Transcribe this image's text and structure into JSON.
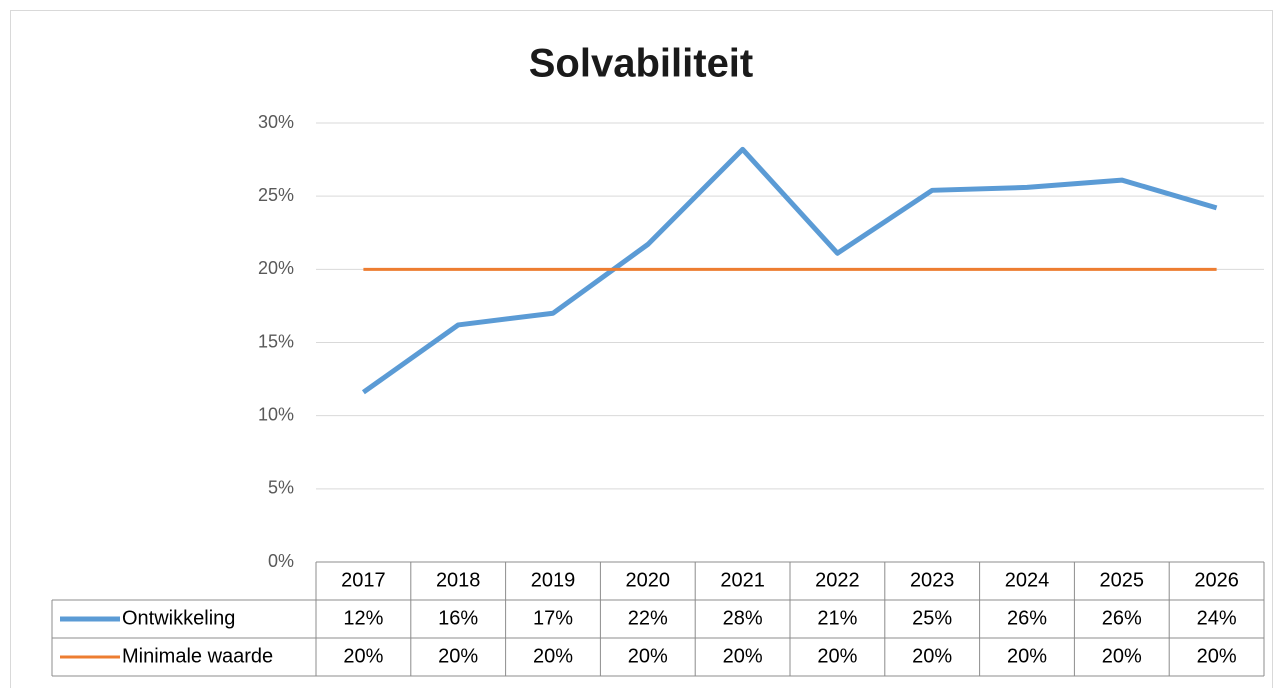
{
  "chart_data": {
    "type": "line",
    "title": "Solvabiliteit",
    "categories": [
      "2017",
      "2018",
      "2019",
      "2020",
      "2021",
      "2022",
      "2023",
      "2024",
      "2025",
      "2026"
    ],
    "series": [
      {
        "name": "Ontwikkeling",
        "color": "#5b9bd5",
        "values": [
          11.6,
          16.2,
          17.0,
          21.7,
          28.2,
          21.1,
          25.4,
          25.6,
          26.1,
          24.2
        ],
        "value_labels": [
          "12%",
          "16%",
          "17%",
          "22%",
          "28%",
          "21%",
          "25%",
          "26%",
          "26%",
          "24%"
        ]
      },
      {
        "name": "Minimale waarde",
        "color": "#ed7d31",
        "values": [
          20,
          20,
          20,
          20,
          20,
          20,
          20,
          20,
          20,
          20
        ],
        "value_labels": [
          "20%",
          "20%",
          "20%",
          "20%",
          "20%",
          "20%",
          "20%",
          "20%",
          "20%",
          "20%"
        ]
      }
    ],
    "ylim": [
      0,
      30
    ],
    "yticks": [
      {
        "value": 0,
        "label": "0%"
      },
      {
        "value": 5,
        "label": "5%"
      },
      {
        "value": 10,
        "label": "10%"
      },
      {
        "value": 15,
        "label": "15%"
      },
      {
        "value": 20,
        "label": "20%"
      },
      {
        "value": 25,
        "label": "25%"
      },
      {
        "value": 30,
        "label": "30%"
      }
    ],
    "grid": true
  }
}
